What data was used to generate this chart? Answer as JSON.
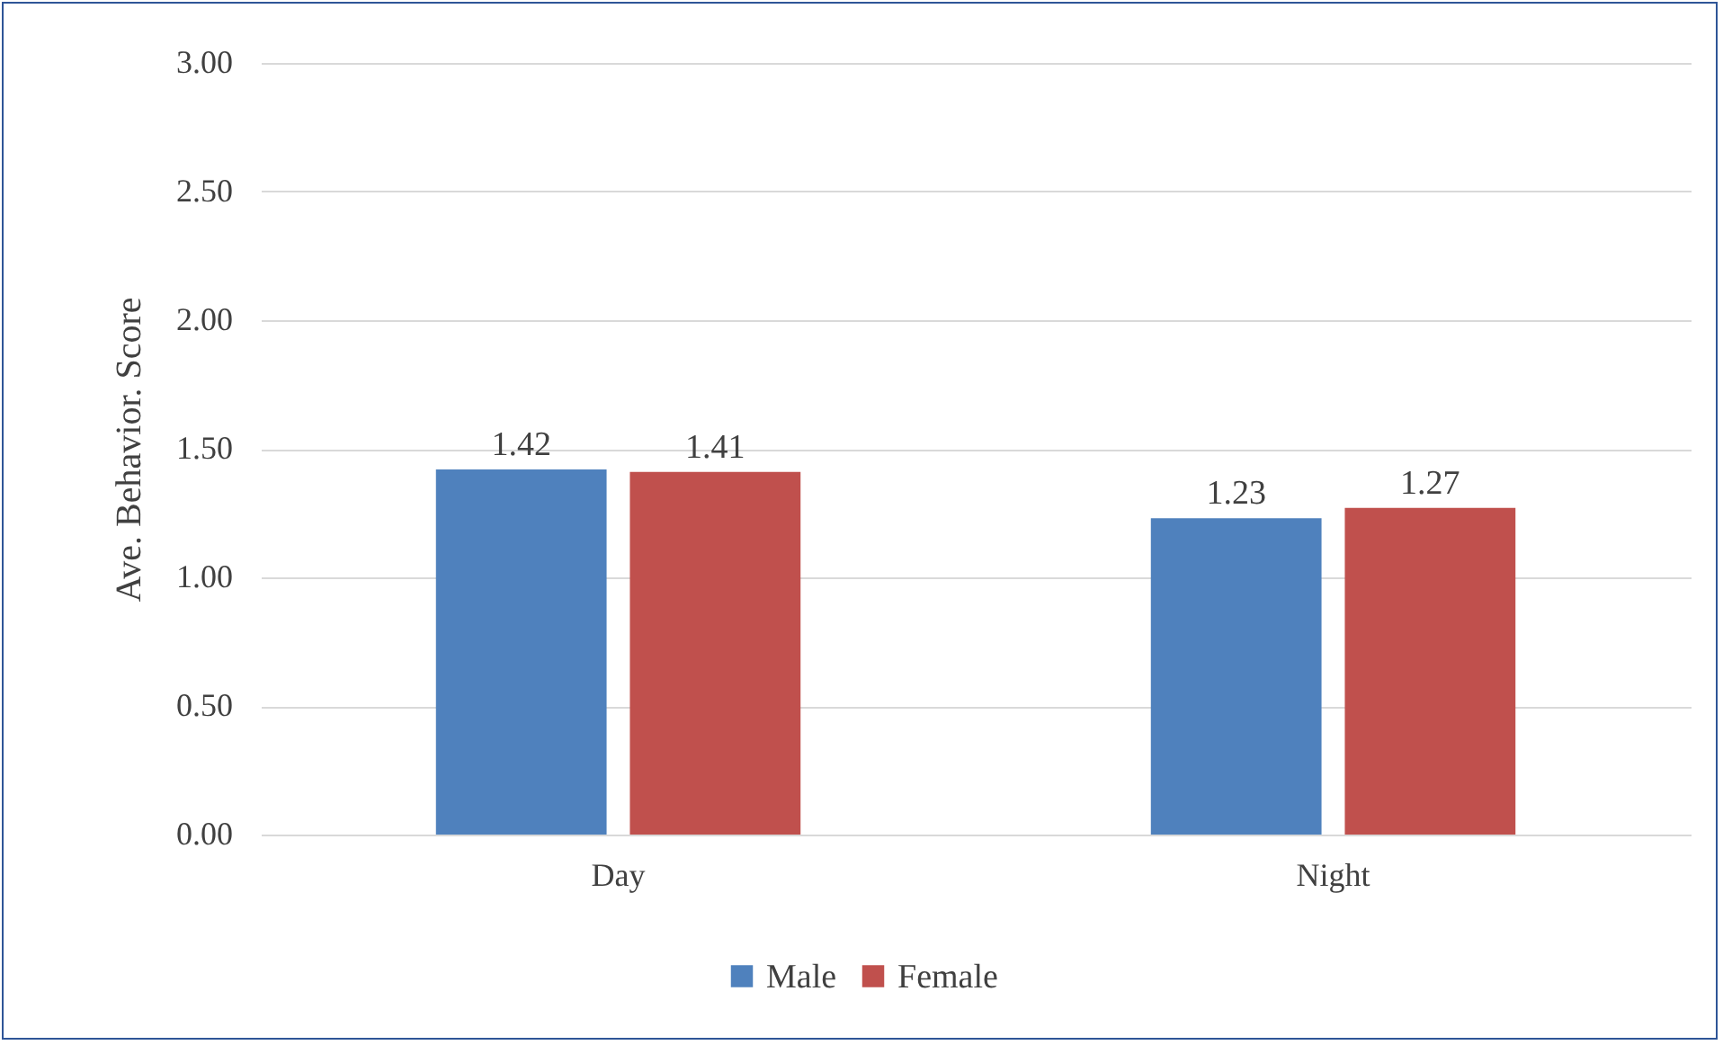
{
  "chart_data": {
    "type": "bar",
    "ylabel": "Ave. Behavior. Score",
    "categories": [
      "Day",
      "Night"
    ],
    "series": [
      {
        "name": "Male",
        "color": "#4f81bd",
        "values": [
          1.42,
          1.23
        ]
      },
      {
        "name": "Female",
        "color": "#c0504d",
        "values": [
          1.41,
          1.27
        ]
      }
    ],
    "ylim": [
      0,
      3
    ],
    "yticks": [
      {
        "value": 0,
        "label": "0.00"
      },
      {
        "value": 0.5,
        "label": "0.50"
      },
      {
        "value": 1,
        "label": "1.00"
      },
      {
        "value": 1.5,
        "label": "1.50"
      },
      {
        "value": 2,
        "label": "2.00"
      },
      {
        "value": 2.5,
        "label": "2.50"
      },
      {
        "value": 3,
        "label": "3.00"
      }
    ],
    "grid": "y",
    "legend": "bottom",
    "data_labels": true
  }
}
